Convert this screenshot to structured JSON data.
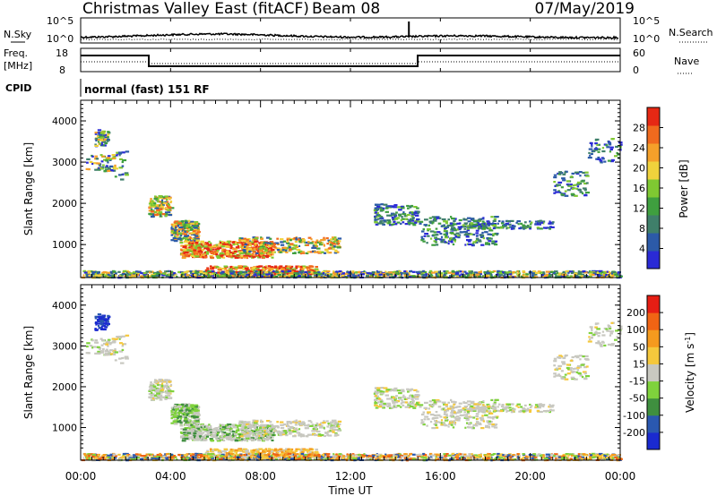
{
  "header": {
    "title": "Christmas Valley East (fitACF)",
    "beam": "Beam 08",
    "date": "07/May/2019"
  },
  "top_panels": {
    "nsky_label": "N.Sky",
    "nsearch_label": "N.Search",
    "nsky_ticks": [
      "10^5",
      "10^0"
    ],
    "freq_label": "Freq.",
    "freq_unit": "[MHz]",
    "freq_ticks": [
      "18",
      "8"
    ],
    "nave_label": "Nave",
    "nave_ticks": [
      "60",
      "0"
    ],
    "cpid_label": "CPID",
    "cpid_text": "normal (fast) 151 RF"
  },
  "chart_data": [
    {
      "type": "heatmap",
      "title": "",
      "ylabel": "Slant Range [km]",
      "xlabel": "",
      "ylim": [
        200,
        4500
      ],
      "yticks": [
        "1000",
        "2000",
        "3000",
        "4000"
      ],
      "colorbar": {
        "label": "Power [dB]",
        "ticks": [
          "28",
          "24",
          "20",
          "16",
          "12",
          "8",
          "4"
        ],
        "colors": [
          "#2a2ad6",
          "#2c5aa8",
          "#3f7f6a",
          "#3f9f3f",
          "#7fc832",
          "#f0d23c",
          "#f5a02a",
          "#f06a1e",
          "#e62814"
        ]
      }
    },
    {
      "type": "heatmap",
      "title": "",
      "ylabel": "Slant Range [km]",
      "xlabel": "Time UT",
      "ylim": [
        200,
        4500
      ],
      "yticks": [
        "1000",
        "2000",
        "3000",
        "4000"
      ],
      "xticks": [
        "00:00",
        "04:00",
        "08:00",
        "12:00",
        "16:00",
        "20:00",
        "00:00"
      ],
      "colorbar": {
        "label": "Velocity [m s^-1]",
        "ticks": [
          "200",
          "100",
          "50",
          "15",
          "-15",
          "-50",
          "-100",
          "-200"
        ],
        "colors": [
          "#1a2ad0",
          "#2a58b0",
          "#3f8f3f",
          "#7fd23c",
          "#c8c8c0",
          "#f5c83c",
          "#f59a1e",
          "#f06414",
          "#e61e14"
        ]
      }
    }
  ]
}
